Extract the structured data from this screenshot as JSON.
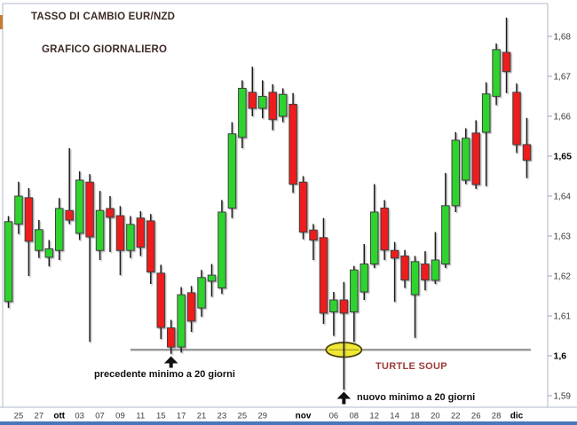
{
  "header": {
    "title": "TASSO DI CAMBIO EUR/NZD",
    "subtitle": "GRAFICO GIORNALIERO"
  },
  "annotations": {
    "prev_low": {
      "text": "precedente minimo a 20 giorni",
      "target_candle": 16
    },
    "new_low": {
      "text": "nuovo minimo a 20 giorni",
      "target_candle": 33
    },
    "turtle_soup": {
      "text": "TURTLE SOUP"
    },
    "level_line": {
      "price": 1.6015
    },
    "highlight_ellipse": {
      "candle_index": 33,
      "price": 1.6015
    }
  },
  "colors": {
    "up": "#2ed32e",
    "down": "#ee1c1c",
    "body_stroke": "#3f3f3f",
    "wick": "#1a1a1a",
    "level_line": "#9b9b9b",
    "ellipse_fill": "#f0e832",
    "ellipse_stroke": "#4a4410",
    "frame": "#b0bac8",
    "tick": "#98a4b8",
    "title": "#3d2b28",
    "turtle_text": "#9c3b39",
    "annotation_text": "#111111",
    "axis_label": "#3c3c3c",
    "axis_label_bold": "#000000",
    "window_edge": "#4a77b9",
    "edge_artifact": "#c87b2b",
    "arrow": "#111111"
  },
  "chart_data": {
    "type": "candlestick",
    "title": "TASSO DI CAMBIO EUR/NZD",
    "subtitle": "GRAFICO GIORNALIERO",
    "ylim": [
      1.588,
      1.688
    ],
    "grid": false,
    "y_axis": {
      "side": "right",
      "ticks": [
        {
          "label": "1,68",
          "value": 1.68,
          "bold": false
        },
        {
          "label": "1,67",
          "value": 1.67,
          "bold": false
        },
        {
          "label": "1,66",
          "value": 1.66,
          "bold": false
        },
        {
          "label": "1,65",
          "value": 1.65,
          "bold": true
        },
        {
          "label": "1,64",
          "value": 1.64,
          "bold": false
        },
        {
          "label": "1,63",
          "value": 1.63,
          "bold": false
        },
        {
          "label": "1,62",
          "value": 1.62,
          "bold": false
        },
        {
          "label": "1,61",
          "value": 1.61,
          "bold": false
        },
        {
          "label": "1,6",
          "value": 1.6,
          "bold": true
        },
        {
          "label": "1,59",
          "value": 1.59,
          "bold": false
        }
      ]
    },
    "x_axis": {
      "labels": [
        {
          "text": "25",
          "candle": 1,
          "bold": false
        },
        {
          "text": "27",
          "candle": 3,
          "bold": false
        },
        {
          "text": "ott",
          "candle": 5,
          "bold": true
        },
        {
          "text": "03",
          "candle": 7,
          "bold": false
        },
        {
          "text": "07",
          "candle": 9,
          "bold": false
        },
        {
          "text": "09",
          "candle": 11,
          "bold": false
        },
        {
          "text": "11",
          "candle": 13,
          "bold": false
        },
        {
          "text": "15",
          "candle": 15,
          "bold": false
        },
        {
          "text": "17",
          "candle": 17,
          "bold": false
        },
        {
          "text": "21",
          "candle": 19,
          "bold": false
        },
        {
          "text": "23",
          "candle": 21,
          "bold": false
        },
        {
          "text": "25",
          "candle": 23,
          "bold": false
        },
        {
          "text": "29",
          "candle": 25,
          "bold": false
        },
        {
          "text": "nov",
          "candle": 29,
          "bold": true
        },
        {
          "text": "06",
          "candle": 32,
          "bold": false
        },
        {
          "text": "08",
          "candle": 34,
          "bold": false
        },
        {
          "text": "12",
          "candle": 36,
          "bold": false
        },
        {
          "text": "14",
          "candle": 38,
          "bold": false
        },
        {
          "text": "18",
          "candle": 40,
          "bold": false
        },
        {
          "text": "20",
          "candle": 42,
          "bold": false
        },
        {
          "text": "22",
          "candle": 44,
          "bold": false
        },
        {
          "text": "26",
          "candle": 46,
          "bold": false
        },
        {
          "text": "28",
          "candle": 48,
          "bold": false
        },
        {
          "text": "dic",
          "candle": 50,
          "bold": true
        }
      ]
    },
    "candles": [
      {
        "o": 1.6136,
        "h": 1.635,
        "l": 1.612,
        "c": 1.6336
      },
      {
        "o": 1.633,
        "h": 1.6436,
        "l": 1.6305,
        "c": 1.64
      },
      {
        "o": 1.6396,
        "h": 1.642,
        "l": 1.62,
        "c": 1.6287
      },
      {
        "o": 1.6264,
        "h": 1.634,
        "l": 1.6245,
        "c": 1.6316
      },
      {
        "o": 1.6247,
        "h": 1.629,
        "l": 1.6224,
        "c": 1.6268
      },
      {
        "o": 1.6264,
        "h": 1.6395,
        "l": 1.624,
        "c": 1.6369
      },
      {
        "o": 1.6364,
        "h": 1.652,
        "l": 1.633,
        "c": 1.634
      },
      {
        "o": 1.6307,
        "h": 1.6462,
        "l": 1.629,
        "c": 1.644
      },
      {
        "o": 1.6435,
        "h": 1.6455,
        "l": 1.6035,
        "c": 1.6298
      },
      {
        "o": 1.6264,
        "h": 1.6413,
        "l": 1.624,
        "c": 1.6364
      },
      {
        "o": 1.6369,
        "h": 1.64,
        "l": 1.626,
        "c": 1.6347
      },
      {
        "o": 1.6351,
        "h": 1.6375,
        "l": 1.6202,
        "c": 1.6264
      },
      {
        "o": 1.6264,
        "h": 1.635,
        "l": 1.6245,
        "c": 1.6329
      },
      {
        "o": 1.6345,
        "h": 1.6362,
        "l": 1.625,
        "c": 1.6272
      },
      {
        "o": 1.6338,
        "h": 1.6355,
        "l": 1.618,
        "c": 1.621
      },
      {
        "o": 1.6207,
        "h": 1.6228,
        "l": 1.6042,
        "c": 1.6071
      },
      {
        "o": 1.607,
        "h": 1.609,
        "l": 1.6005,
        "c": 1.6022
      },
      {
        "o": 1.6022,
        "h": 1.6172,
        "l": 1.6008,
        "c": 1.6153
      },
      {
        "o": 1.6158,
        "h": 1.6175,
        "l": 1.606,
        "c": 1.6087
      },
      {
        "o": 1.612,
        "h": 1.6215,
        "l": 1.6098,
        "c": 1.6196
      },
      {
        "o": 1.6187,
        "h": 1.623,
        "l": 1.6148,
        "c": 1.6202
      },
      {
        "o": 1.617,
        "h": 1.639,
        "l": 1.6155,
        "c": 1.636
      },
      {
        "o": 1.637,
        "h": 1.6585,
        "l": 1.6345,
        "c": 1.6556
      },
      {
        "o": 1.6547,
        "h": 1.669,
        "l": 1.652,
        "c": 1.667
      },
      {
        "o": 1.666,
        "h": 1.6724,
        "l": 1.66,
        "c": 1.662
      },
      {
        "o": 1.662,
        "h": 1.669,
        "l": 1.6595,
        "c": 1.665
      },
      {
        "o": 1.666,
        "h": 1.668,
        "l": 1.6565,
        "c": 1.6592
      },
      {
        "o": 1.66,
        "h": 1.667,
        "l": 1.6585,
        "c": 1.6655
      },
      {
        "o": 1.663,
        "h": 1.6658,
        "l": 1.6408,
        "c": 1.643
      },
      {
        "o": 1.6435,
        "h": 1.645,
        "l": 1.6292,
        "c": 1.631
      },
      {
        "o": 1.6315,
        "h": 1.633,
        "l": 1.624,
        "c": 1.629
      },
      {
        "o": 1.6296,
        "h": 1.6345,
        "l": 1.608,
        "c": 1.6107
      },
      {
        "o": 1.611,
        "h": 1.616,
        "l": 1.605,
        "c": 1.614
      },
      {
        "o": 1.614,
        "h": 1.6185,
        "l": 1.5915,
        "c": 1.6107
      },
      {
        "o": 1.611,
        "h": 1.6225,
        "l": 1.6035,
        "c": 1.6215
      },
      {
        "o": 1.616,
        "h": 1.628,
        "l": 1.614,
        "c": 1.623
      },
      {
        "o": 1.623,
        "h": 1.643,
        "l": 1.622,
        "c": 1.636
      },
      {
        "o": 1.637,
        "h": 1.639,
        "l": 1.624,
        "c": 1.6265
      },
      {
        "o": 1.6264,
        "h": 1.6285,
        "l": 1.6135,
        "c": 1.6245
      },
      {
        "o": 1.625,
        "h": 1.6265,
        "l": 1.617,
        "c": 1.619
      },
      {
        "o": 1.6153,
        "h": 1.625,
        "l": 1.6045,
        "c": 1.6236
      },
      {
        "o": 1.623,
        "h": 1.6262,
        "l": 1.6164,
        "c": 1.619
      },
      {
        "o": 1.6189,
        "h": 1.631,
        "l": 1.618,
        "c": 1.624
      },
      {
        "o": 1.623,
        "h": 1.6458,
        "l": 1.622,
        "c": 1.6376
      },
      {
        "o": 1.6376,
        "h": 1.656,
        "l": 1.636,
        "c": 1.654
      },
      {
        "o": 1.644,
        "h": 1.657,
        "l": 1.643,
        "c": 1.6545
      },
      {
        "o": 1.6558,
        "h": 1.659,
        "l": 1.6418,
        "c": 1.6429
      },
      {
        "o": 1.656,
        "h": 1.6685,
        "l": 1.6425,
        "c": 1.6656
      },
      {
        "o": 1.665,
        "h": 1.6782,
        "l": 1.6628,
        "c": 1.6767
      },
      {
        "o": 1.676,
        "h": 1.6847,
        "l": 1.6658,
        "c": 1.6712
      },
      {
        "o": 1.666,
        "h": 1.6682,
        "l": 1.6508,
        "c": 1.6529
      },
      {
        "o": 1.6529,
        "h": 1.6596,
        "l": 1.6445,
        "c": 1.649
      }
    ]
  }
}
